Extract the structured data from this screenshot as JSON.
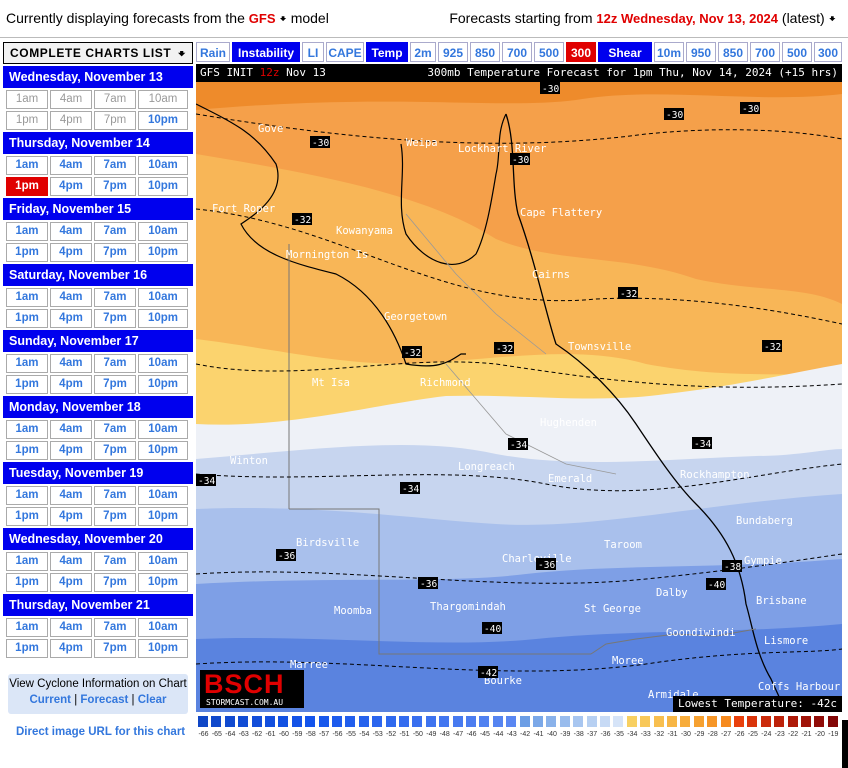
{
  "top": {
    "left_prefix": "Currently displaying forecasts from the",
    "model": "GFS",
    "left_suffix": "model",
    "right_prefix": "Forecasts starting from",
    "run": "12z Wednesday, Nov 13, 2024",
    "right_suffix": "(latest)"
  },
  "sidebar": {
    "charts_list_label": "COMPLETE CHARTS LIST",
    "days": [
      {
        "label": "Wednesday, November 13",
        "times": [
          "1am",
          "4am",
          "7am",
          "10am",
          "1pm",
          "4pm",
          "7pm",
          "10pm"
        ]
      },
      {
        "label": "Thursday, November 14",
        "times": [
          "1am",
          "4am",
          "7am",
          "10am",
          "1pm",
          "4pm",
          "7pm",
          "10pm"
        ]
      },
      {
        "label": "Friday, November 15",
        "times": [
          "1am",
          "4am",
          "7am",
          "10am",
          "1pm",
          "4pm",
          "7pm",
          "10pm"
        ]
      },
      {
        "label": "Saturday, November 16",
        "times": [
          "1am",
          "4am",
          "7am",
          "10am",
          "1pm",
          "4pm",
          "7pm",
          "10pm"
        ]
      },
      {
        "label": "Sunday, November 17",
        "times": [
          "1am",
          "4am",
          "7am",
          "10am",
          "1pm",
          "4pm",
          "7pm",
          "10pm"
        ]
      },
      {
        "label": "Monday, November 18",
        "times": [
          "1am",
          "4am",
          "7am",
          "10am",
          "1pm",
          "4pm",
          "7pm",
          "10pm"
        ]
      },
      {
        "label": "Tuesday, November 19",
        "times": [
          "1am",
          "4am",
          "7am",
          "10am",
          "1pm",
          "4pm",
          "7pm",
          "10pm"
        ]
      },
      {
        "label": "Wednesday, November 20",
        "times": [
          "1am",
          "4am",
          "7am",
          "10am",
          "1pm",
          "4pm",
          "7pm",
          "10pm"
        ]
      },
      {
        "label": "Thursday, November 21",
        "times": [
          "1am",
          "4am",
          "7am",
          "10am",
          "1pm",
          "4pm",
          "7pm",
          "10pm"
        ]
      }
    ],
    "cyclone_title": "View Cyclone Information on Chart",
    "cyclone_links": [
      "Current",
      "Forecast",
      "Clear"
    ],
    "cyclone_sep": "|",
    "direct_url": "Direct image URL for this chart"
  },
  "tabs": [
    {
      "label": "Rain",
      "style": "plain"
    },
    {
      "label": "Instability",
      "style": "blue"
    },
    {
      "label": "LI",
      "style": "plain"
    },
    {
      "label": "CAPE",
      "style": "plain"
    },
    {
      "label": "Temp",
      "style": "blue"
    },
    {
      "label": "2m",
      "style": "plain"
    },
    {
      "label": "925",
      "style": "plain"
    },
    {
      "label": "850",
      "style": "plain"
    },
    {
      "label": "700",
      "style": "plain"
    },
    {
      "label": "500",
      "style": "plain"
    },
    {
      "label": "300",
      "style": "red"
    },
    {
      "label": "Shear",
      "style": "blue"
    },
    {
      "label": "10m",
      "style": "plain"
    },
    {
      "label": "950",
      "style": "plain"
    },
    {
      "label": "850",
      "style": "plain"
    },
    {
      "label": "700",
      "style": "plain"
    },
    {
      "label": "500",
      "style": "plain"
    },
    {
      "label": "300",
      "style": "plain"
    }
  ],
  "chart": {
    "title_left": "GFS INIT",
    "title_run": "12z",
    "title_date": "Nov 13",
    "title_right": "300mb Temperature Forecast for 1pm Thu, Nov 14, 2024 (+15 hrs)",
    "logo_big": "BSCH",
    "logo_small": "STORMCAST.COM.AU",
    "lowest": "Lowest Temperature: -42c",
    "places": [
      "Gove",
      "Weipa",
      "Lockhart River",
      "Fort Roper",
      "Cape Flattery",
      "Kowanyama",
      "Mornington Is",
      "Cairns",
      "Georgetown",
      "Townsville",
      "Mt Isa",
      "Richmond",
      "Hughenden",
      "Winton",
      "Longreach",
      "Emerald",
      "Rockhampton",
      "Bundaberg",
      "Birdsville",
      "Charleville",
      "Taroom",
      "Gympie",
      "Dalby",
      "Brisbane",
      "Moomba",
      "Thargomindah",
      "St George",
      "Goondiwindi",
      "Lismore",
      "Marree",
      "Bourke",
      "Moree",
      "Armidale",
      "Coffs Harbour"
    ],
    "contours": [
      "-30",
      "-30",
      "-30",
      "-30",
      "-30",
      "-32",
      "-32",
      "-32",
      "-32",
      "-32",
      "-34",
      "-34",
      "-34",
      "-34",
      "-36",
      "-36",
      "-38",
      "-36",
      "-40",
      "-40",
      "-42"
    ]
  },
  "legend": {
    "values": [
      "-66",
      "-65",
      "-64",
      "-63",
      "-62",
      "-61",
      "-60",
      "-59",
      "-58",
      "-57",
      "-56",
      "-55",
      "-54",
      "-53",
      "-52",
      "-51",
      "-50",
      "-49",
      "-48",
      "-47",
      "-46",
      "-45",
      "-44",
      "-43",
      "-42",
      "-41",
      "-40",
      "-39",
      "-38",
      "-37",
      "-36",
      "-35",
      "-34",
      "-33",
      "-32",
      "-31",
      "-30",
      "-29",
      "-28",
      "-27",
      "-26",
      "-25",
      "-24",
      "-23",
      "-22",
      "-21",
      "-20",
      "-19"
    ]
  }
}
